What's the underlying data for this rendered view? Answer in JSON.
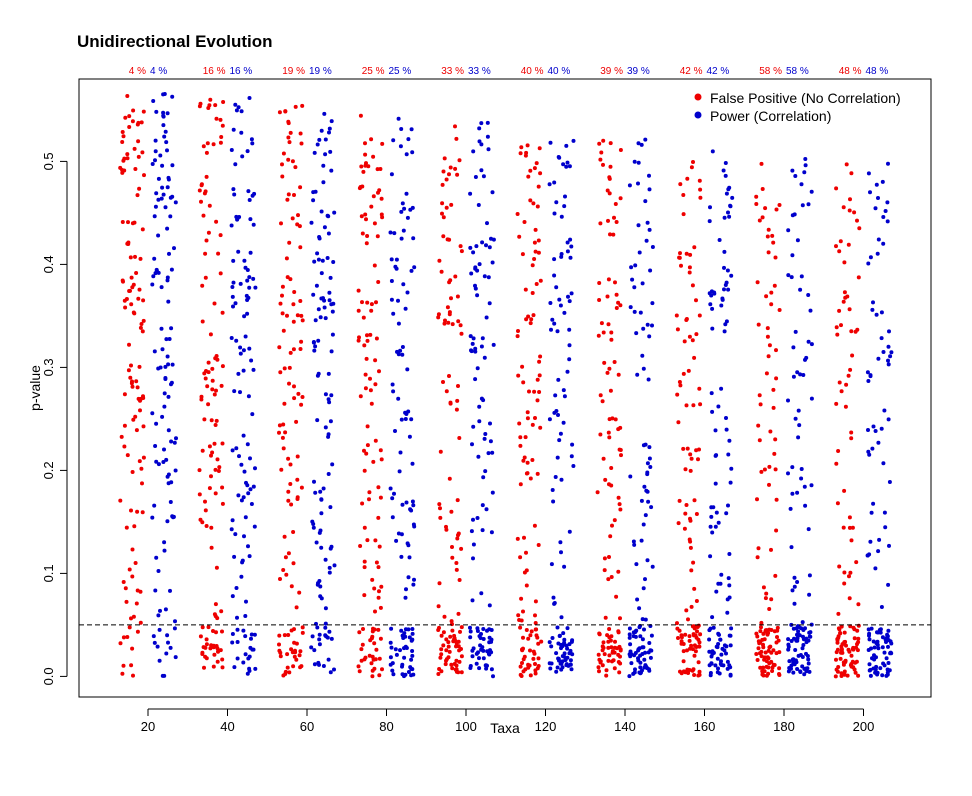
{
  "chart_data": {
    "type": "scatter",
    "title": "Unidirectional Evolution",
    "xlabel": "Taxa",
    "ylabel": "p-value",
    "categories": [
      "20",
      "40",
      "60",
      "80",
      "100",
      "120",
      "140",
      "160",
      "180",
      "200"
    ],
    "ylim": [
      -0.02,
      0.58
    ],
    "yticks": [
      "0.0",
      "0.1",
      "0.2",
      "0.3",
      "0.4",
      "0.5"
    ],
    "threshold": 0.05,
    "legend_position": "top-right",
    "series": [
      {
        "name": "False Positive (No Correlation)",
        "color": "#ee0000",
        "rates": [
          "4 %",
          "16 %",
          "19 %",
          "25 %",
          "33 %",
          "40 %",
          "39 %",
          "42 %",
          "58 %",
          "48 %"
        ]
      },
      {
        "name": "Power (Correlation)",
        "color": "#0000cc",
        "rates": [
          "4 %",
          "16 %",
          "19 %",
          "25 %",
          "33 %",
          "40 %",
          "39 %",
          "42 %",
          "58 %",
          "48 %"
        ]
      }
    ]
  }
}
